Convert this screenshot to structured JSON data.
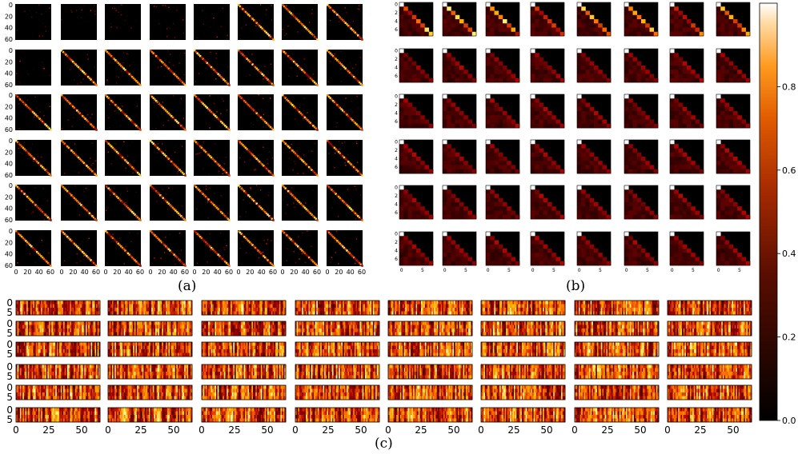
{
  "figure": {
    "captions": [
      "(a)",
      "(b)",
      "(c)"
    ]
  },
  "chart_data": [
    {
      "type": "heatmap",
      "panel": "(a)",
      "rows": 6,
      "cols": 8,
      "matrix_size": 64,
      "x_ticks": [
        "0",
        "20",
        "40",
        "60"
      ],
      "y_ticks": [
        "0",
        "20",
        "40",
        "60"
      ],
      "colormap": "gist_heat",
      "description_values": "sparse attention maps, mostly near 0 with diagonal bands and grid lines"
    },
    {
      "type": "heatmap",
      "panel": "(b)",
      "rows": 6,
      "cols": 8,
      "matrix_size": 8,
      "x_ticks": [
        "0",
        "5"
      ],
      "y_ticks": [
        "0",
        "2",
        "4",
        "6"
      ],
      "colormap": "gist_heat",
      "causal": true
    },
    {
      "type": "heatmap",
      "panel": "(c)",
      "rows": 6,
      "cols": 8,
      "matrix_shape": [
        8,
        64
      ],
      "x_ticks": [
        "0",
        "25",
        "50"
      ],
      "y_ticks": [
        "0",
        "5"
      ],
      "colormap": "gist_heat"
    },
    {
      "type": "colorbar",
      "vmin": 0.0,
      "vmax": 1.0,
      "ticks": [
        "0.0",
        "0.2",
        "0.4",
        "0.6",
        "0.8"
      ],
      "colormap": "gist_heat"
    }
  ]
}
